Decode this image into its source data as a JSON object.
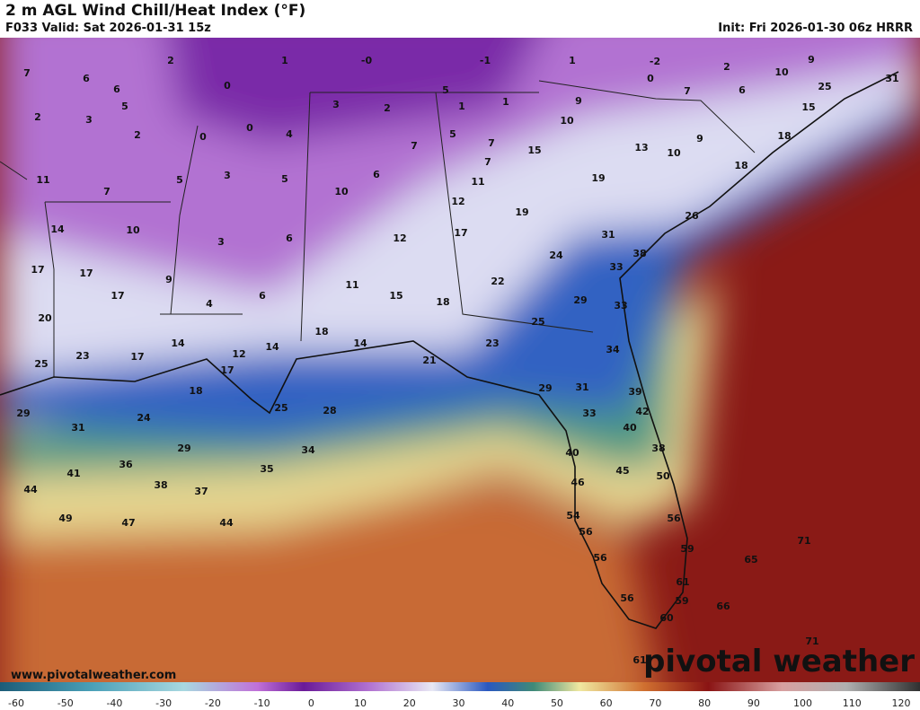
{
  "header": {
    "title": "2 m AGL Wind Chill/Heat Index (°F)",
    "valid": "F033 Valid: Sat 2026-01-31 15z",
    "init": "Init: Fri 2026-01-30 06z HRRR"
  },
  "footer": {
    "website": "www.pivotalweather.com",
    "logo": "pivotal weather"
  },
  "colorbar": {
    "ticks": [
      -60,
      -50,
      -40,
      -30,
      -20,
      -10,
      0,
      10,
      20,
      30,
      40,
      50,
      60,
      70,
      80,
      90,
      100,
      110,
      120
    ]
  },
  "map_labels": [
    "7",
    "6",
    "6",
    "2",
    "1",
    "-0",
    "-1",
    "1",
    "-2",
    "2",
    "10",
    "9",
    "25",
    "31",
    "2",
    "3",
    "5",
    "2",
    "0",
    "0",
    "0",
    "4",
    "3",
    "2",
    "5",
    "1",
    "1",
    "9",
    "10",
    "0",
    "7",
    "6",
    "15",
    "11",
    "7",
    "5",
    "3",
    "5",
    "10",
    "6",
    "7",
    "5",
    "7",
    "7",
    "11",
    "15",
    "13",
    "10",
    "9",
    "18",
    "18",
    "19",
    "14",
    "10",
    "3",
    "6",
    "12",
    "12",
    "17",
    "19",
    "26",
    "31",
    "38",
    "24",
    "33",
    "17",
    "17",
    "9",
    "17",
    "6",
    "11",
    "15",
    "18",
    "22",
    "29",
    "33",
    "4",
    "20",
    "14",
    "12",
    "14",
    "18",
    "14",
    "25",
    "23",
    "34",
    "25",
    "23",
    "17",
    "17",
    "18",
    "21",
    "29",
    "31",
    "39",
    "29",
    "31",
    "24",
    "25",
    "28",
    "33",
    "42",
    "40",
    "38",
    "29",
    "34",
    "35",
    "40",
    "45",
    "50",
    "41",
    "36",
    "38",
    "37",
    "46",
    "44",
    "49",
    "47",
    "44",
    "54",
    "56",
    "56",
    "59",
    "56",
    "71",
    "65",
    "61",
    "59",
    "56",
    "66",
    "60",
    "71",
    "61"
  ]
}
